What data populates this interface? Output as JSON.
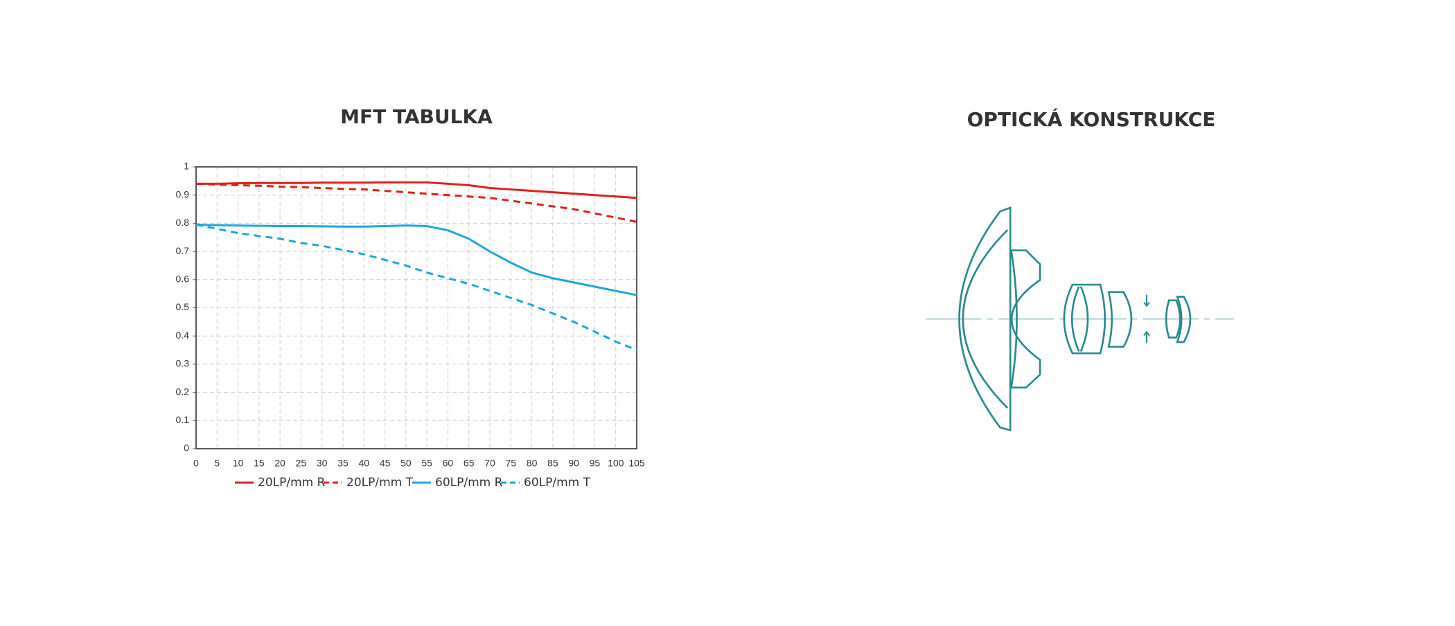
{
  "chart_data": {
    "type": "line",
    "title": "MFT TABULKA",
    "x": [
      0,
      5,
      10,
      15,
      20,
      25,
      30,
      35,
      40,
      45,
      50,
      55,
      60,
      65,
      70,
      75,
      80,
      85,
      90,
      95,
      100,
      105
    ],
    "xlim": [
      0,
      105
    ],
    "xticks": [
      0,
      5,
      10,
      15,
      20,
      25,
      30,
      35,
      40,
      45,
      50,
      55,
      60,
      65,
      70,
      75,
      80,
      85,
      90,
      95,
      100,
      105
    ],
    "ylim": [
      0,
      1
    ],
    "yticks": [
      0,
      0.1,
      0.2,
      0.3,
      0.4,
      0.5,
      0.6,
      0.7,
      0.8,
      0.9,
      1
    ],
    "grid": true,
    "legend": "bottom",
    "series": [
      {
        "name": "20LP/mm R",
        "color": "#e0201b",
        "dashed": false,
        "values": [
          0.94,
          0.94,
          0.942,
          0.943,
          0.943,
          0.943,
          0.944,
          0.944,
          0.944,
          0.945,
          0.945,
          0.945,
          0.94,
          0.935,
          0.925,
          0.92,
          0.915,
          0.91,
          0.905,
          0.9,
          0.895,
          0.89
        ]
      },
      {
        "name": "20LP/mm T",
        "color": "#e0201b",
        "dashed": true,
        "values": [
          0.94,
          0.937,
          0.935,
          0.933,
          0.93,
          0.928,
          0.925,
          0.922,
          0.92,
          0.915,
          0.91,
          0.905,
          0.9,
          0.895,
          0.89,
          0.88,
          0.87,
          0.86,
          0.85,
          0.835,
          0.82,
          0.805
        ]
      },
      {
        "name": "60LP/mm R",
        "color": "#1ea6dc",
        "dashed": false,
        "values": [
          0.795,
          0.793,
          0.792,
          0.791,
          0.79,
          0.79,
          0.789,
          0.788,
          0.788,
          0.79,
          0.792,
          0.79,
          0.775,
          0.745,
          0.7,
          0.66,
          0.625,
          0.605,
          0.59,
          0.575,
          0.56,
          0.545
        ]
      },
      {
        "name": "60LP/mm T",
        "color": "#1ea6dc",
        "dashed": true,
        "values": [
          0.795,
          0.78,
          0.765,
          0.755,
          0.745,
          0.73,
          0.72,
          0.705,
          0.69,
          0.67,
          0.65,
          0.625,
          0.605,
          0.585,
          0.56,
          0.535,
          0.51,
          0.48,
          0.45,
          0.415,
          0.38,
          0.35
        ]
      }
    ]
  },
  "optics": {
    "title": "OPTICKÁ KONSTRUKCE"
  }
}
